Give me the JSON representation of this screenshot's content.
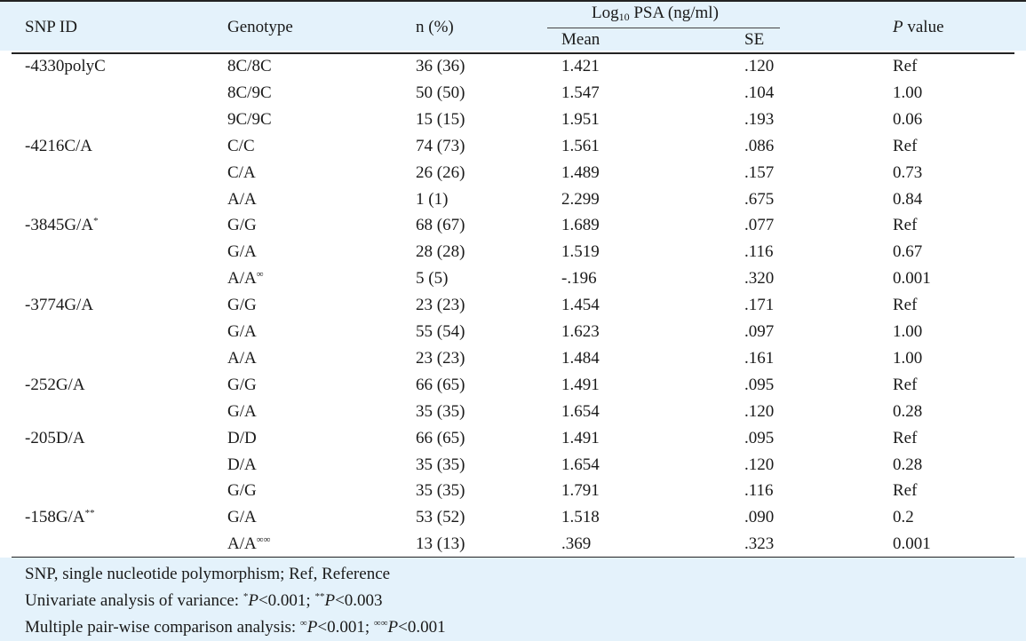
{
  "headers": {
    "snp_id": "SNP ID",
    "genotype": "Genotype",
    "n_pct": "n (%)",
    "log_prefix": "Log",
    "log_sub": "10",
    "log_suffix": " PSA (ng/ml)",
    "mean": "Mean",
    "se": "SE",
    "p_italic": "P",
    "p_rest": " value"
  },
  "rows": [
    {
      "snp": "-4330polyC",
      "snp_sup": "",
      "genotype": "8C/8C",
      "gen_sup": "",
      "n": "36 (36)",
      "mean": "1.421",
      "se": ".120",
      "p": "Ref"
    },
    {
      "snp": "",
      "snp_sup": "",
      "genotype": "8C/9C",
      "gen_sup": "",
      "n": "50 (50)",
      "mean": "1.547",
      "se": ".104",
      "p": "1.00"
    },
    {
      "snp": "",
      "snp_sup": "",
      "genotype": "9C/9C",
      "gen_sup": "",
      "n": "15 (15)",
      "mean": "1.951",
      "se": ".193",
      "p": "0.06"
    },
    {
      "snp": "-4216C/A",
      "snp_sup": "",
      "genotype": "C/C",
      "gen_sup": "",
      "n": "74 (73)",
      "mean": "1.561",
      "se": ".086",
      "p": "Ref"
    },
    {
      "snp": "",
      "snp_sup": "",
      "genotype": "C/A",
      "gen_sup": "",
      "n": "26 (26)",
      "mean": "1.489",
      "se": ".157",
      "p": "0.73"
    },
    {
      "snp": "",
      "snp_sup": "",
      "genotype": "A/A",
      "gen_sup": "",
      "n": "1 (1)",
      "mean": "2.299",
      "se": ".675",
      "p": "0.84"
    },
    {
      "snp": "-3845G/A",
      "snp_sup": "*",
      "genotype": "G/G",
      "gen_sup": "",
      "n": "68 (67)",
      "mean": "1.689",
      "se": ".077",
      "p": "Ref"
    },
    {
      "snp": "",
      "snp_sup": "",
      "genotype": "G/A",
      "gen_sup": "",
      "n": "28 (28)",
      "mean": "1.519",
      "se": ".116",
      "p": "0.67"
    },
    {
      "snp": "",
      "snp_sup": "",
      "genotype": "A/A",
      "gen_sup": "∞",
      "n": "5 (5)",
      "mean": "-.196",
      "se": ".320",
      "p": "0.001"
    },
    {
      "snp": "-3774G/A",
      "snp_sup": "",
      "genotype": "G/G",
      "gen_sup": "",
      "n": "23 (23)",
      "mean": "1.454",
      "se": ".171",
      "p": "Ref"
    },
    {
      "snp": "",
      "snp_sup": "",
      "genotype": "G/A",
      "gen_sup": "",
      "n": "55 (54)",
      "mean": "1.623",
      "se": ".097",
      "p": "1.00"
    },
    {
      "snp": "",
      "snp_sup": "",
      "genotype": "A/A",
      "gen_sup": "",
      "n": "23 (23)",
      "mean": "1.484",
      "se": ".161",
      "p": "1.00"
    },
    {
      "snp": "-252G/A",
      "snp_sup": "",
      "genotype": "G/G",
      "gen_sup": "",
      "n": "66 (65)",
      "mean": "1.491",
      "se": ".095",
      "p": "Ref"
    },
    {
      "snp": "",
      "snp_sup": "",
      "genotype": "G/A",
      "gen_sup": "",
      "n": "35 (35)",
      "mean": "1.654",
      "se": ".120",
      "p": "0.28"
    },
    {
      "snp": "-205D/A",
      "snp_sup": "",
      "genotype": "D/D",
      "gen_sup": "",
      "n": "66 (65)",
      "mean": "1.491",
      "se": ".095",
      "p": "Ref"
    },
    {
      "snp": "",
      "snp_sup": "",
      "genotype": "D/A",
      "gen_sup": "",
      "n": "35 (35)",
      "mean": "1.654",
      "se": ".120",
      "p": "0.28"
    },
    {
      "snp": "",
      "snp_sup": "",
      "genotype": "G/G",
      "gen_sup": "",
      "n": "35 (35)",
      "mean": "1.791",
      "se": ".116",
      "p": "Ref"
    },
    {
      "snp": "-158G/A",
      "snp_sup": "**",
      "genotype": "G/A",
      "gen_sup": "",
      "n": "53 (52)",
      "mean": "1.518",
      "se": ".090",
      "p": "0.2"
    },
    {
      "snp": "",
      "snp_sup": "",
      "genotype": "A/A",
      "gen_sup": "∞∞",
      "n": "13 (13)",
      "mean": ".369",
      "se": ".323",
      "p": "0.001"
    }
  ],
  "footnotes": {
    "abbrev": "SNP, single nucleotide polymorphism; Ref, Reference",
    "anova_lead": "Univariate analysis of variance: ",
    "anova_sym1": "*",
    "anova_p1": "P",
    "anova_val1": "<0.001; ",
    "anova_sym2": "**",
    "anova_p2": "P",
    "anova_val2": "<0.003",
    "pair_lead": "Multiple pair-wise comparison analysis: ",
    "pair_sym1": "∞",
    "pair_p1": "P",
    "pair_val1": "<0.001; ",
    "pair_sym2": "∞∞",
    "pair_p2": "P",
    "pair_val2": "<0.001"
  }
}
